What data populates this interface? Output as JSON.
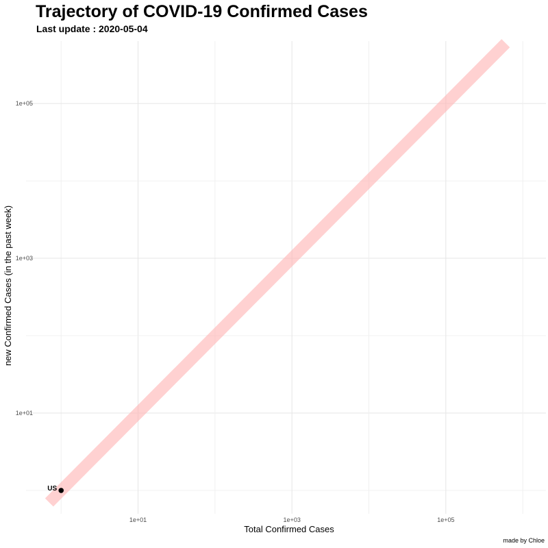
{
  "chart_data": {
    "type": "scatter",
    "title": "Trajectory of COVID-19 Confirmed Cases",
    "subtitle": "Last update : 2020-05-04",
    "xlabel": "Total Confirmed Cases",
    "ylabel": "new Confirmed Cases (in the past week)",
    "caption": "made by Chloe",
    "x_scale": "log10",
    "y_scale": "log10",
    "xlim": [
      0.35,
      2000000
    ],
    "ylim": [
      0.5,
      640000
    ],
    "x_ticks": [
      {
        "value": 10,
        "label": "1e+01"
      },
      {
        "value": 1000,
        "label": "1e+03"
      },
      {
        "value": 100000,
        "label": "1e+05"
      }
    ],
    "y_ticks": [
      {
        "value": 10,
        "label": "1e+01"
      },
      {
        "value": 1000,
        "label": "1e+03"
      },
      {
        "value": 100000,
        "label": "1e+05"
      }
    ],
    "grid": true,
    "reference_line": {
      "description": "y = x",
      "color": "#ffb3b3",
      "opacity": 0.6
    },
    "series": [
      {
        "points": [
          {
            "label": "US",
            "x": 1,
            "y": 1
          }
        ],
        "color": "#000000"
      }
    ]
  }
}
